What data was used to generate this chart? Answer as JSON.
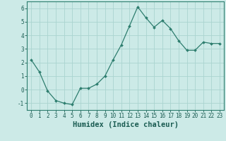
{
  "x": [
    0,
    1,
    2,
    3,
    4,
    5,
    6,
    7,
    8,
    9,
    10,
    11,
    12,
    13,
    14,
    15,
    16,
    17,
    18,
    19,
    20,
    21,
    22,
    23
  ],
  "y": [
    2.2,
    1.3,
    -0.1,
    -0.8,
    -1.0,
    -1.1,
    0.1,
    0.1,
    0.4,
    1.0,
    2.2,
    3.3,
    4.7,
    6.1,
    5.3,
    4.6,
    5.1,
    4.5,
    3.6,
    2.9,
    2.9,
    3.5,
    3.4,
    3.4
  ],
  "line_color": "#2d7d6e",
  "marker": "D",
  "marker_size": 2.0,
  "bg_color": "#cceae7",
  "grid_color": "#aad4d0",
  "xlabel": "Humidex (Indice chaleur)",
  "xlim": [
    -0.5,
    23.5
  ],
  "ylim": [
    -1.5,
    6.5
  ],
  "yticks": [
    -1,
    0,
    1,
    2,
    3,
    4,
    5,
    6
  ],
  "xticks": [
    0,
    1,
    2,
    3,
    4,
    5,
    6,
    7,
    8,
    9,
    10,
    11,
    12,
    13,
    14,
    15,
    16,
    17,
    18,
    19,
    20,
    21,
    22,
    23
  ],
  "tick_fontsize": 5.5,
  "xlabel_fontsize": 7.5,
  "line_color_dark": "#1a5c52",
  "spine_color": "#2d7d6e"
}
